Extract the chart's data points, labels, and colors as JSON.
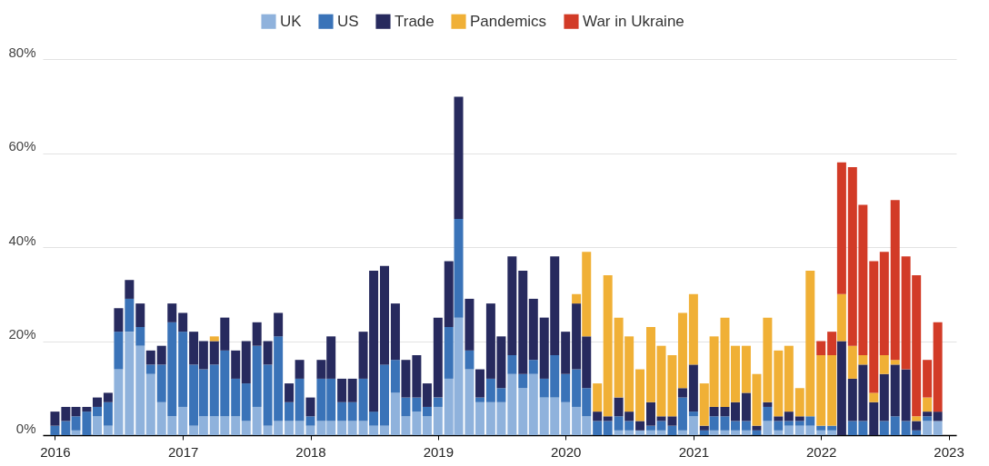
{
  "chart_data": {
    "type": "bar",
    "stacked": true,
    "legend": "top",
    "grid": "y",
    "x": [
      "2016-01",
      "2016-02",
      "2016-03",
      "2016-04",
      "2016-05",
      "2016-06",
      "2016-07",
      "2016-08",
      "2016-09",
      "2016-10",
      "2016-11",
      "2016-12",
      "2017-01",
      "2017-02",
      "2017-03",
      "2017-04",
      "2017-05",
      "2017-06",
      "2017-07",
      "2017-08",
      "2017-09",
      "2017-10",
      "2017-11",
      "2017-12",
      "2018-01",
      "2018-02",
      "2018-03",
      "2018-04",
      "2018-05",
      "2018-06",
      "2018-07",
      "2018-08",
      "2018-09",
      "2018-10",
      "2018-11",
      "2018-12",
      "2019-01",
      "2019-02",
      "2019-03",
      "2019-04",
      "2019-05",
      "2019-06",
      "2019-07",
      "2019-08",
      "2019-09",
      "2019-10",
      "2019-11",
      "2019-12",
      "2020-01",
      "2020-02",
      "2020-03",
      "2020-04",
      "2020-05",
      "2020-06",
      "2020-07",
      "2020-08",
      "2020-09",
      "2020-10",
      "2020-11",
      "2020-12",
      "2021-01",
      "2021-02",
      "2021-03",
      "2021-04",
      "2021-05",
      "2021-06",
      "2021-07",
      "2021-08",
      "2021-09",
      "2021-10",
      "2021-11",
      "2021-12",
      "2022-01",
      "2022-02",
      "2022-03",
      "2022-04",
      "2022-05",
      "2022-06",
      "2022-07",
      "2022-08",
      "2022-09",
      "2022-10",
      "2022-11",
      "2022-12"
    ],
    "xlim": [
      "2015-12-10",
      "2023-01-10"
    ],
    "xticks": [
      "2016",
      "2017",
      "2018",
      "2019",
      "2020",
      "2021",
      "2022",
      "2023"
    ],
    "ylim": [
      0,
      80
    ],
    "yticks": [
      {
        "value": 0,
        "label": "0%"
      },
      {
        "value": 20,
        "label": "20%"
      },
      {
        "value": 40,
        "label": "40%"
      },
      {
        "value": 60,
        "label": "60%"
      },
      {
        "value": 80,
        "label": "80%"
      }
    ],
    "series": [
      {
        "name": "UK",
        "color": "#8fb2dc",
        "values": [
          null,
          null,
          1,
          null,
          4,
          2,
          14,
          22,
          19,
          13,
          7,
          4,
          6,
          2,
          4,
          4,
          4,
          4,
          3,
          6,
          2,
          3,
          3,
          3,
          2,
          3,
          3,
          3,
          3,
          3,
          2,
          2,
          9,
          4,
          5,
          4,
          6,
          12,
          25,
          14,
          7,
          7,
          7,
          13,
          10,
          13,
          8,
          8,
          7,
          6,
          4,
          null,
          null,
          1,
          1,
          1,
          1,
          1,
          null,
          1,
          4,
          null,
          1,
          1,
          1,
          1,
          null,
          3,
          1,
          2,
          2,
          2,
          1,
          1,
          null,
          null,
          null,
          null,
          null,
          null,
          null,
          null,
          3,
          3
        ]
      },
      {
        "name": "US",
        "color": "#3a73b8",
        "values": [
          2,
          3,
          3,
          5,
          2,
          5,
          8,
          7,
          4,
          2,
          8,
          20,
          16,
          13,
          10,
          11,
          14,
          8,
          8,
          13,
          13,
          18,
          4,
          9,
          2,
          9,
          9,
          4,
          4,
          9,
          3,
          13,
          7,
          4,
          3,
          2,
          2,
          11,
          21,
          4,
          1,
          5,
          3,
          4,
          3,
          3,
          4,
          9,
          6,
          8,
          6,
          3,
          3,
          3,
          2,
          null,
          1,
          2,
          2,
          7,
          1,
          1,
          3,
          3,
          2,
          2,
          1,
          3,
          2,
          1,
          1,
          2,
          1,
          1,
          null,
          3,
          3,
          null,
          3,
          4,
          3,
          1,
          1,
          null
        ]
      },
      {
        "name": "Trade",
        "color": "#272a5e",
        "values": [
          3,
          3,
          2,
          1,
          2,
          2,
          5,
          4,
          5,
          3,
          4,
          4,
          4,
          7,
          6,
          5,
          7,
          6,
          9,
          5,
          5,
          5,
          4,
          4,
          4,
          4,
          9,
          5,
          5,
          10,
          30,
          21,
          12,
          8,
          9,
          5,
          17,
          14,
          26,
          11,
          6,
          16,
          11,
          21,
          22,
          13,
          13,
          21,
          9,
          14,
          11,
          2,
          1,
          4,
          2,
          2,
          5,
          1,
          2,
          2,
          10,
          1,
          2,
          2,
          4,
          6,
          1,
          1,
          1,
          2,
          1,
          null,
          null,
          null,
          20,
          9,
          12,
          7,
          10,
          11,
          11,
          2,
          1,
          2
        ]
      },
      {
        "name": "Pandemics",
        "color": "#f0b036",
        "values": [
          null,
          null,
          null,
          null,
          null,
          null,
          null,
          null,
          null,
          null,
          null,
          null,
          null,
          null,
          null,
          1,
          null,
          null,
          null,
          null,
          null,
          null,
          null,
          null,
          null,
          null,
          null,
          null,
          null,
          null,
          null,
          null,
          null,
          null,
          null,
          null,
          null,
          null,
          null,
          null,
          null,
          null,
          null,
          null,
          null,
          null,
          null,
          null,
          null,
          2,
          18,
          6,
          30,
          17,
          16,
          11,
          16,
          15,
          13,
          16,
          15,
          9,
          15,
          19,
          12,
          10,
          11,
          18,
          14,
          14,
          6,
          31,
          15,
          15,
          10,
          7,
          2,
          2,
          4,
          1,
          null,
          1,
          3,
          null
        ]
      },
      {
        "name": "War in Ukraine",
        "color": "#d23b27",
        "values": [
          null,
          null,
          null,
          null,
          null,
          null,
          null,
          null,
          null,
          null,
          null,
          null,
          null,
          null,
          null,
          null,
          null,
          null,
          null,
          null,
          null,
          null,
          null,
          null,
          null,
          null,
          null,
          null,
          null,
          null,
          null,
          null,
          null,
          null,
          null,
          null,
          null,
          null,
          null,
          null,
          null,
          null,
          null,
          null,
          null,
          null,
          null,
          null,
          null,
          null,
          null,
          null,
          null,
          null,
          null,
          null,
          null,
          null,
          null,
          null,
          null,
          null,
          null,
          null,
          null,
          null,
          null,
          null,
          null,
          null,
          null,
          null,
          3,
          5,
          28,
          38,
          32,
          28,
          22,
          34,
          24,
          30,
          8,
          19
        ]
      }
    ]
  }
}
